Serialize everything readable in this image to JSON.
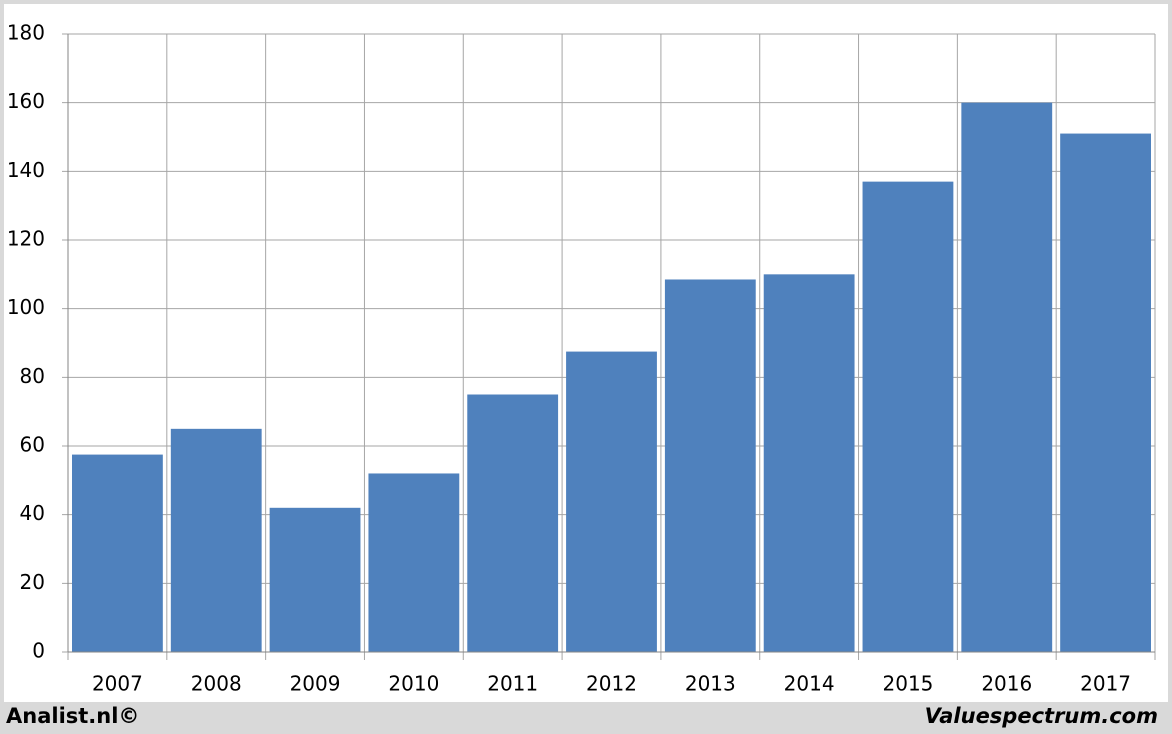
{
  "chart_data": {
    "type": "bar",
    "categories": [
      "2007",
      "2008",
      "2009",
      "2010",
      "2011",
      "2012",
      "2013",
      "2014",
      "2015",
      "2016",
      "2017"
    ],
    "values": [
      57.5,
      65,
      42,
      52,
      75,
      87.5,
      108.5,
      110,
      137,
      160,
      151
    ],
    "color": "#4f81bd",
    "ylim": [
      0,
      180
    ],
    "yticks": [
      0,
      20,
      40,
      60,
      80,
      100,
      120,
      140,
      160,
      180
    ],
    "grid": true,
    "footer_left": "Analist.nl©",
    "footer_right": "Valuespectrum.com"
  }
}
